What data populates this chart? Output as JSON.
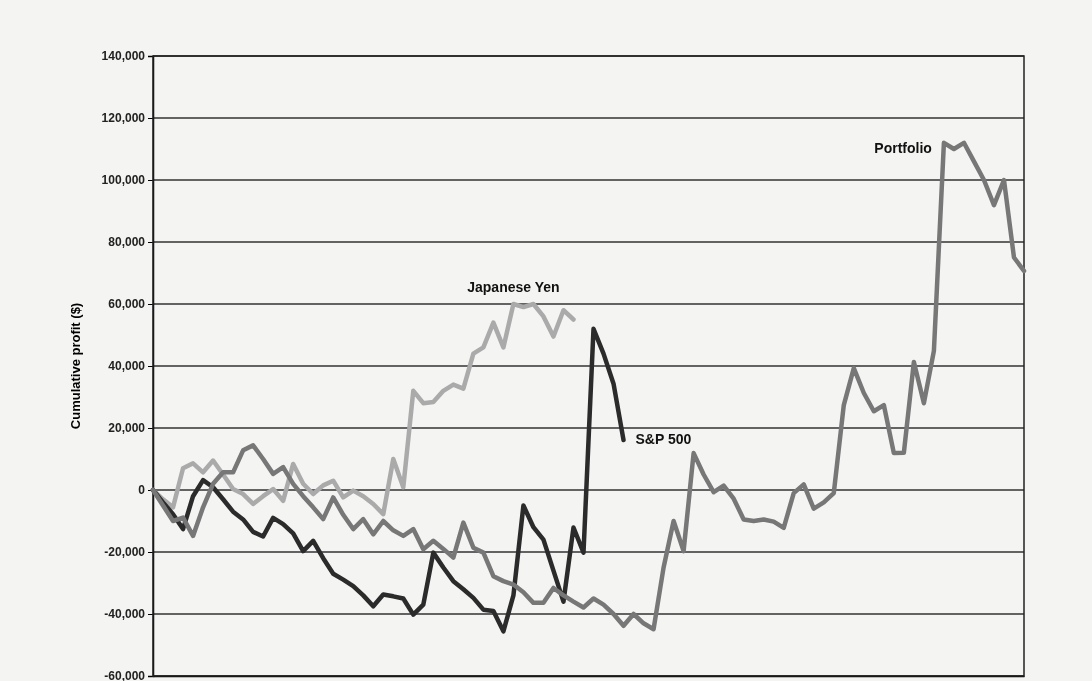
{
  "chart_data": {
    "type": "line",
    "ylabel": "Cumulative profit ($)",
    "categories": [
      null,
      null,
      null,
      null,
      null,
      null,
      null,
      null,
      null,
      null,
      null,
      null,
      null,
      null,
      null,
      null,
      null,
      null,
      null,
      null,
      null,
      null,
      null,
      null,
      null,
      null,
      null,
      null,
      null,
      null,
      null,
      null,
      null,
      null,
      null,
      null,
      null,
      null,
      null,
      null,
      null,
      null,
      null,
      null,
      null,
      null,
      null,
      null,
      null,
      null,
      null,
      null,
      null,
      null,
      null,
      null,
      null,
      null,
      null,
      null,
      null,
      null,
      null,
      null,
      null,
      null,
      null,
      null,
      null,
      null,
      null,
      null,
      null,
      null,
      null,
      null,
      null,
      null,
      null,
      null,
      null,
      null,
      null,
      null,
      null,
      null,
      null,
      null
    ],
    "ylim": [
      -60000,
      140000
    ],
    "yticks": [
      {
        "value": -60000,
        "label": "-60,000"
      },
      {
        "value": -40000,
        "label": "-40,000"
      },
      {
        "value": -20000,
        "label": "-20,000"
      },
      0,
      {
        "value": 20000,
        "label": "20,000"
      },
      {
        "value": 40000,
        "label": "40,000"
      },
      {
        "value": 60000,
        "label": "60,000"
      },
      {
        "value": 80000,
        "label": "80,000"
      },
      {
        "value": 100000,
        "label": "100,000"
      },
      {
        "value": 120000,
        "label": "120,000"
      },
      {
        "value": 140000,
        "label": "140,000"
      }
    ],
    "grid": "y",
    "legend": false,
    "tick_labels": "y",
    "marker": "none",
    "line_style": "solid",
    "series": [
      {
        "name": "Japanese Yen",
        "color": "#aaaaaa",
        "values": [
          0,
          -3000,
          -5600,
          7000,
          8600,
          5700,
          9500,
          5000,
          300,
          -1300,
          -4500,
          -2000,
          300,
          -3500,
          8400,
          2000,
          -1300,
          1500,
          3000,
          -2400,
          -200,
          -2000,
          -4500,
          -7800,
          10000,
          900,
          32000,
          28000,
          28400,
          32000,
          34000,
          32700,
          44000,
          46000,
          54000,
          46000,
          60000,
          59000,
          60000,
          56000,
          49500,
          58000,
          55000,
          null,
          null,
          null,
          null,
          null,
          null,
          null,
          null,
          null,
          null,
          null,
          null,
          null,
          null,
          null,
          null,
          null,
          null,
          null,
          null,
          null,
          null,
          null,
          null,
          null,
          null,
          null,
          null,
          null,
          null,
          null,
          null,
          null,
          null,
          null,
          null,
          null,
          null,
          null,
          null,
          null,
          null,
          null,
          null,
          null
        ]
      },
      {
        "name": "S&P 500",
        "color": "#2b2b2b",
        "values": [
          0,
          -4000,
          -7800,
          -12600,
          -2000,
          3200,
          900,
          -3000,
          -7000,
          -9500,
          -13500,
          -15000,
          -9000,
          -11000,
          -14000,
          -19700,
          -16400,
          -22000,
          -27000,
          -28900,
          -31000,
          -34000,
          -37500,
          -33700,
          -34300,
          -35000,
          -40200,
          -37000,
          -20200,
          -25000,
          -29400,
          -32000,
          -34800,
          -38600,
          -39000,
          -45600,
          -34000,
          -5000,
          -12000,
          -16000,
          -26000,
          -36000,
          -12100,
          -20200,
          52000,
          44000,
          34300,
          16100,
          null,
          null,
          null,
          null,
          null,
          null,
          null,
          null,
          null,
          null,
          null,
          null,
          null,
          null,
          null,
          null,
          null,
          null,
          null,
          null,
          null,
          null,
          null,
          null,
          null,
          null,
          null,
          null,
          null,
          null,
          null,
          null,
          null,
          null,
          null,
          null,
          null,
          null,
          null,
          null
        ]
      },
      {
        "name": "Portfolio",
        "color": "#777777",
        "values": [
          0,
          -5000,
          -10000,
          -8900,
          -14800,
          -5600,
          2000,
          5700,
          5700,
          12800,
          14400,
          10000,
          5200,
          7400,
          2000,
          -2000,
          -5600,
          -9400,
          -2400,
          -8000,
          -12600,
          -9400,
          -14300,
          -10000,
          -13000,
          -14800,
          -12600,
          -19100,
          -16400,
          -19000,
          -21800,
          -10500,
          -18600,
          -20200,
          -27800,
          -29400,
          -30500,
          -33000,
          -36400,
          -36400,
          -31600,
          -34000,
          -36000,
          -37900,
          -35000,
          -37000,
          -40000,
          -43800,
          -40000,
          -43000,
          -44900,
          -25000,
          -10000,
          -19700,
          11900,
          5000,
          -700,
          1400,
          -2800,
          -9500,
          -10000,
          -9500,
          -10200,
          -12200,
          -1000,
          1800,
          -6000,
          -4000,
          -1000,
          27400,
          39300,
          31300,
          25400,
          27400,
          11900,
          12000,
          41300,
          28000,
          44900,
          112000,
          110000,
          112000,
          106000,
          100000,
          91900,
          100000,
          75000,
          70700
        ]
      }
    ]
  }
}
